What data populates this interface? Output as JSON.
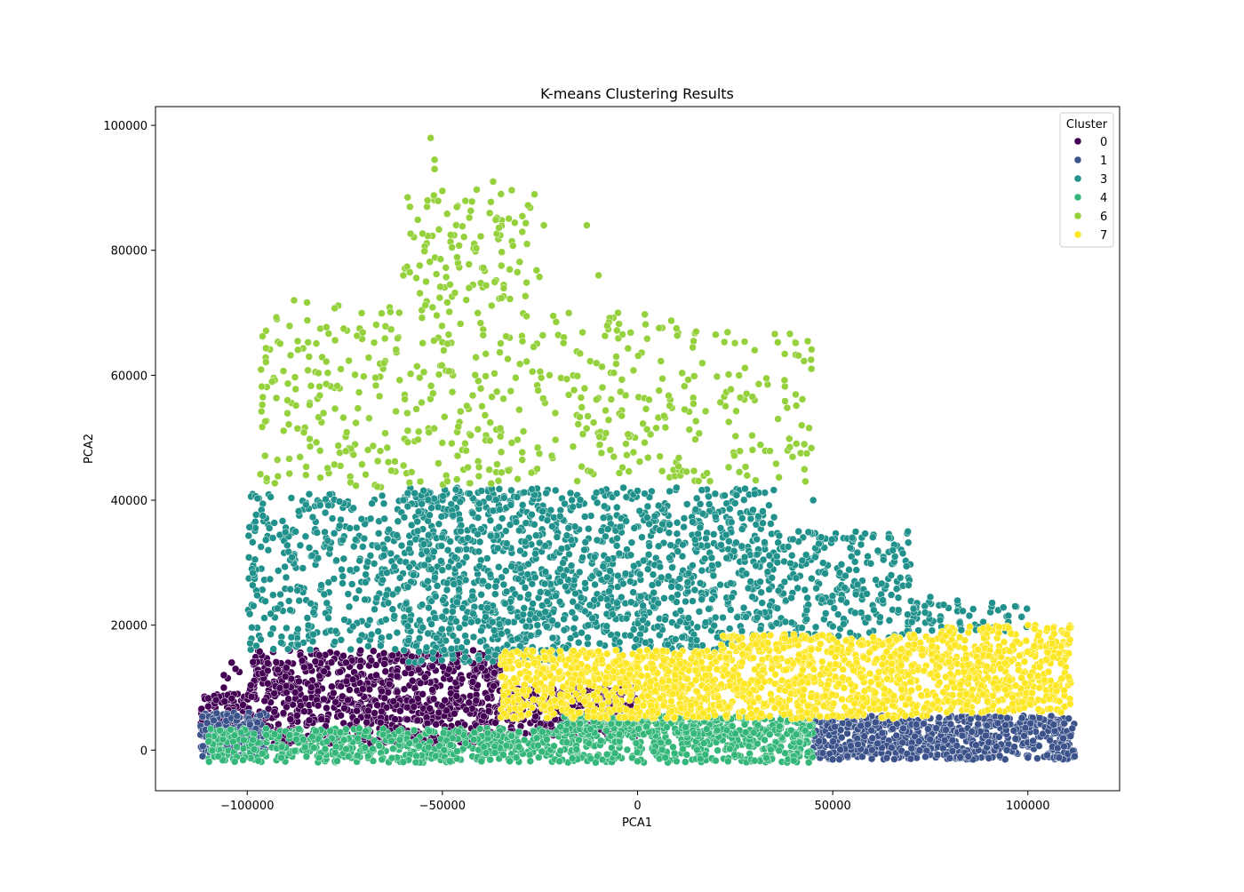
{
  "chart_data": {
    "type": "scatter",
    "title": "K-means Clustering Results",
    "xlabel": "PCA1",
    "ylabel": "PCA2",
    "xlim": [
      -123500,
      123500
    ],
    "ylim": [
      -6500,
      103000
    ],
    "x_ticks": [
      -100000,
      -50000,
      0,
      50000,
      100000
    ],
    "x_tick_labels": [
      "−100000",
      "−50000",
      "0",
      "50000",
      "100000"
    ],
    "y_ticks": [
      0,
      20000,
      40000,
      60000,
      80000,
      100000
    ],
    "y_tick_labels": [
      "0",
      "20000",
      "40000",
      "60000",
      "80000",
      "100000"
    ],
    "grid": false,
    "legend": {
      "title": "Cluster",
      "placement": "top-right"
    },
    "series": [
      {
        "name": "0",
        "color": "#440154",
        "regions": [
          {
            "x_range": [
              -112000,
              -100000
            ],
            "y_range": [
              2000,
              9000
            ],
            "weight": 120
          },
          {
            "x_range": [
              -100000,
              -35000
            ],
            "y_range": [
              1000,
              16000
            ],
            "weight": 900
          },
          {
            "x_range": [
              -35000,
              0
            ],
            "y_range": [
              2000,
              10000
            ],
            "weight": 300
          }
        ],
        "points": [
          [
            -105000,
            11500
          ],
          [
            -104000,
            14000
          ],
          [
            -106000,
            10000
          ],
          [
            -102000,
            12500
          ],
          [
            -103000,
            13000
          ],
          [
            -108000,
            8000
          ],
          [
            -110000,
            7000
          ],
          [
            -106000,
            12000
          ]
        ]
      },
      {
        "name": "1",
        "color": "#3b528b",
        "regions": [
          {
            "x_range": [
              45000,
              112000
            ],
            "y_range": [
              -1500,
              5500
            ],
            "weight": 700
          },
          {
            "x_range": [
              -112000,
              -95000
            ],
            "y_range": [
              -1000,
              6000
            ],
            "weight": 200
          }
        ],
        "points": [
          [
            112000,
            -1000
          ],
          [
            108000,
            -1200
          ],
          [
            100000,
            -1200
          ],
          [
            90000,
            -1300
          ],
          [
            80000,
            -1300
          ],
          [
            70000,
            -1400
          ],
          [
            60000,
            -1400
          ],
          [
            50000,
            -1500
          ]
        ]
      },
      {
        "name": "3",
        "color": "#21918c",
        "regions": [
          {
            "x_range": [
              -100000,
              -60000
            ],
            "y_range": [
              16000,
              41000
            ],
            "weight": 350
          },
          {
            "x_range": [
              -60000,
              -20000
            ],
            "y_range": [
              14000,
              42000
            ],
            "weight": 700
          },
          {
            "x_range": [
              -20000,
              35000
            ],
            "y_range": [
              16000,
              42000
            ],
            "weight": 700
          },
          {
            "x_range": [
              35000,
              70000
            ],
            "y_range": [
              18000,
              35000
            ],
            "weight": 250
          },
          {
            "x_range": [
              70000,
              100000
            ],
            "y_range": [
              19000,
              24000
            ],
            "weight": 60
          }
        ],
        "points": [
          [
            -98000,
            30500
          ],
          [
            -96000,
            37500
          ],
          [
            -94000,
            40500
          ],
          [
            -80000,
            38000
          ],
          [
            -60000,
            40000
          ],
          [
            -40000,
            41500
          ],
          [
            0,
            41500
          ],
          [
            10000,
            42000
          ],
          [
            30000,
            41000
          ],
          [
            45000,
            40000
          ],
          [
            55000,
            34000
          ],
          [
            65000,
            28000
          ],
          [
            75000,
            24500
          ],
          [
            85000,
            21500
          ],
          [
            95000,
            20500
          ]
        ]
      },
      {
        "name": "4",
        "color": "#35b779",
        "regions": [
          {
            "x_range": [
              -110000,
              45000
            ],
            "y_range": [
              -2000,
              3500
            ],
            "weight": 900
          },
          {
            "x_range": [
              -20000,
              45000
            ],
            "y_range": [
              2500,
              5500
            ],
            "weight": 300
          }
        ],
        "points": [
          [
            40000,
            -1700
          ],
          [
            30000,
            -1700
          ],
          [
            20000,
            -1700
          ],
          [
            10000,
            -1800
          ],
          [
            0,
            -1800
          ],
          [
            -20000,
            -1800
          ],
          [
            -40000,
            -1800
          ],
          [
            -60000,
            -1900
          ]
        ]
      },
      {
        "name": "6",
        "color": "#95d13c",
        "regions": [
          {
            "x_range": [
              -97000,
              -60000
            ],
            "y_range": [
              42000,
              72000
            ],
            "weight": 160
          },
          {
            "x_range": [
              -60000,
              -25000
            ],
            "y_range": [
              42000,
              90000
            ],
            "weight": 260
          },
          {
            "x_range": [
              -25000,
              10000
            ],
            "y_range": [
              43000,
              70000
            ],
            "weight": 130
          },
          {
            "x_range": [
              10000,
              45000
            ],
            "y_range": [
              43000,
              67000
            ],
            "weight": 100
          }
        ],
        "points": [
          [
            -53000,
            98000
          ],
          [
            -52000,
            94500
          ],
          [
            -52000,
            93000
          ],
          [
            -50000,
            89500
          ],
          [
            -37000,
            91000
          ],
          [
            -35000,
            89000
          ],
          [
            -24000,
            84000
          ],
          [
            -13000,
            84000
          ],
          [
            -10000,
            76000
          ],
          [
            -5000,
            70000
          ],
          [
            10000,
            67500
          ],
          [
            15000,
            67000
          ],
          [
            20000,
            66500
          ],
          [
            30000,
            64000
          ],
          [
            33000,
            59500
          ],
          [
            36000,
            53000
          ],
          [
            39000,
            48500
          ],
          [
            43000,
            43000
          ],
          [
            -96000,
            56500
          ],
          [
            -95000,
            43500
          ],
          [
            -88000,
            72000
          ]
        ]
      },
      {
        "name": "7",
        "color": "#fde725",
        "regions": [
          {
            "x_range": [
              -35000,
              20000
            ],
            "y_range": [
              5000,
              16000
            ],
            "weight": 700
          },
          {
            "x_range": [
              20000,
              75000
            ],
            "y_range": [
              5000,
              18500
            ],
            "weight": 700
          },
          {
            "x_range": [
              75000,
              111000
            ],
            "y_range": [
              6000,
              20000
            ],
            "weight": 450
          }
        ],
        "points": [
          [
            105000,
            19500
          ],
          [
            110000,
            18500
          ],
          [
            100000,
            20000
          ],
          [
            90000,
            19500
          ],
          [
            80000,
            19000
          ]
        ]
      }
    ]
  }
}
